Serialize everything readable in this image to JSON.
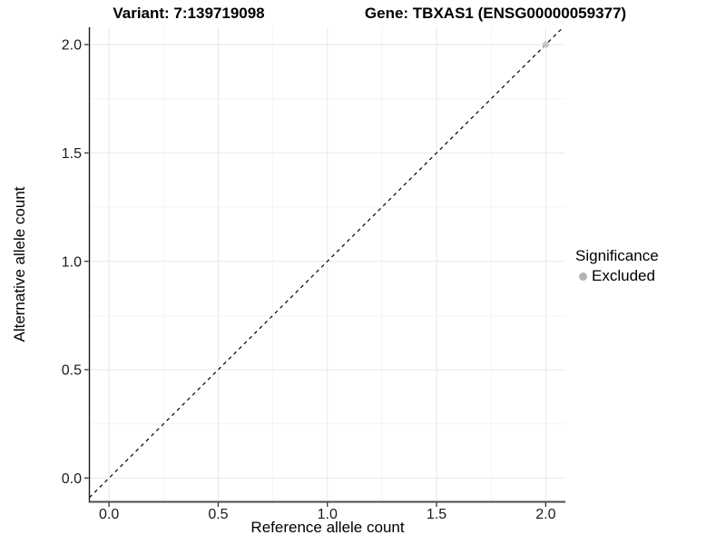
{
  "header": {
    "variant_title": "Variant: 7:139719098",
    "gene_title": "Gene: TBXAS1 (ENSG00000059377)"
  },
  "chart_data": {
    "type": "scatter",
    "titles": [
      "Variant: 7:139719098",
      "Gene: TBXAS1 (ENSG00000059377)"
    ],
    "xlabel": "Reference allele count",
    "ylabel": "Alternative allele count",
    "xlim": [
      -0.09,
      2.09
    ],
    "ylim": [
      -0.11,
      2.08
    ],
    "x_ticks": [
      "0.0",
      "0.5",
      "1.0",
      "1.5",
      "2.0"
    ],
    "y_ticks": [
      "0.0",
      "0.5",
      "1.0",
      "1.5",
      "2.0"
    ],
    "x_minor_ticks": [
      0.25,
      0.75,
      1.25,
      1.75
    ],
    "y_minor_ticks": [
      0.25,
      0.75,
      1.25,
      1.75
    ],
    "grid": "major+minor",
    "identity_line": {
      "style": "dashed",
      "color": "#000000",
      "from": -0.09,
      "to": 2.08
    },
    "series": [
      {
        "name": "Excluded",
        "color": "#c4c4c4",
        "points": [
          {
            "x": 2.0,
            "y": 2.0
          }
        ]
      }
    ],
    "legend": {
      "title": "Significance",
      "position": "right",
      "entries": [
        {
          "label": "Excluded",
          "color": "#b3b3b3"
        }
      ]
    }
  },
  "colors": {
    "background": "#ffffff",
    "panel_background": "#ffffff",
    "grid_major": "#e8e8e8",
    "grid_minor": "#f4f4f4",
    "axis_line_left": "#1a1a1a",
    "axis_line_bottom": "#4d4d4d",
    "tick_mark": "#333333",
    "tick_label": "#1a1a1a",
    "point": "#c4c4c4",
    "legend_point": "#b3b3b3",
    "identity_line": "#000000"
  }
}
